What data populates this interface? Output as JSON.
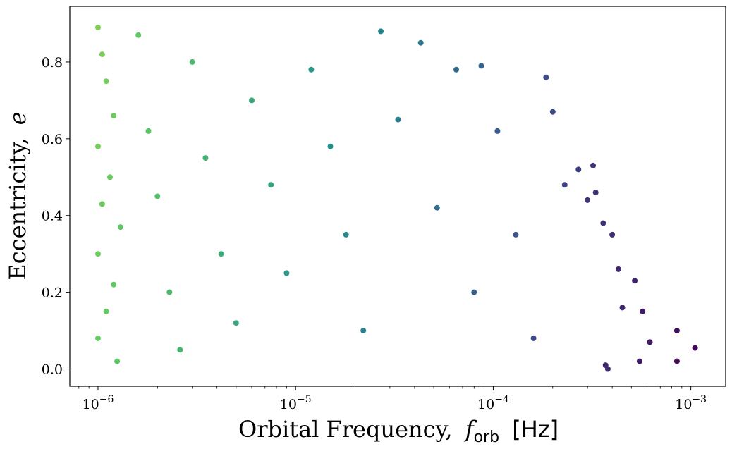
{
  "chart_data": {
    "type": "scatter",
    "title": "",
    "xlabel": "Orbital Frequency,",
    "xlabel_symbol": "f",
    "xlabel_subscript": "orb",
    "xlabel_unit": "[Hz]",
    "ylabel": "Eccentricity,",
    "ylabel_symbol": "e",
    "x_scale": "log",
    "xlim": [
      7.2e-07,
      0.0015
    ],
    "ylim": [
      -0.045,
      0.945
    ],
    "x_ticks": [
      {
        "value": 1e-06,
        "label": "10",
        "exp": "−6"
      },
      {
        "value": 1e-05,
        "label": "10",
        "exp": "−5"
      },
      {
        "value": 0.0001,
        "label": "10",
        "exp": "−4"
      },
      {
        "value": 0.001,
        "label": "10",
        "exp": "−3"
      }
    ],
    "y_ticks": [
      {
        "value": 0.0,
        "label": "0.0"
      },
      {
        "value": 0.2,
        "label": "0.2"
      },
      {
        "value": 0.4,
        "label": "0.4"
      },
      {
        "value": 0.6,
        "label": "0.6"
      },
      {
        "value": 0.8,
        "label": "0.8"
      }
    ],
    "colormap": "viridis",
    "color_note_stops": [
      "#440154",
      "#3b528b",
      "#21918c",
      "#5ec962",
      "#fde725"
    ],
    "grid": false,
    "legend": "none",
    "series": [
      {
        "points": [
          [
            1e-06,
            0.89
          ],
          [
            1.05e-06,
            0.82
          ],
          [
            1.1e-06,
            0.75
          ],
          [
            1.2e-06,
            0.66
          ],
          [
            1e-06,
            0.58
          ],
          [
            1.15e-06,
            0.5
          ],
          [
            1.05e-06,
            0.43
          ],
          [
            1.3e-06,
            0.37
          ],
          [
            1e-06,
            0.3
          ],
          [
            1.2e-06,
            0.22
          ],
          [
            1.1e-06,
            0.15
          ],
          [
            1e-06,
            0.08
          ],
          [
            1.25e-06,
            0.02
          ],
          [
            1.6e-06,
            0.87
          ],
          [
            1.8e-06,
            0.62
          ],
          [
            2e-06,
            0.45
          ],
          [
            2.3e-06,
            0.2
          ],
          [
            2.6e-06,
            0.05
          ],
          [
            3e-06,
            0.8
          ],
          [
            3.5e-06,
            0.55
          ],
          [
            4.2e-06,
            0.3
          ],
          [
            5e-06,
            0.12
          ],
          [
            6e-06,
            0.7
          ],
          [
            7.5e-06,
            0.48
          ],
          [
            9e-06,
            0.25
          ],
          [
            1.2e-05,
            0.78
          ],
          [
            1.5e-05,
            0.58
          ],
          [
            1.8e-05,
            0.35
          ],
          [
            2.2e-05,
            0.1
          ],
          [
            2.7e-05,
            0.88
          ],
          [
            3.3e-05,
            0.65
          ],
          [
            4.3e-05,
            0.85
          ],
          [
            5.2e-05,
            0.42
          ],
          [
            6.5e-05,
            0.78
          ],
          [
            8e-05,
            0.2
          ],
          [
            8.7e-05,
            0.79
          ],
          [
            0.000105,
            0.62
          ],
          [
            0.00013,
            0.35
          ],
          [
            0.00016,
            0.08
          ],
          [
            0.000185,
            0.76
          ],
          [
            0.0002,
            0.67
          ],
          [
            0.00023,
            0.48
          ],
          [
            0.00027,
            0.52
          ],
          [
            0.0003,
            0.44
          ],
          [
            0.00032,
            0.53
          ],
          [
            0.00033,
            0.46
          ],
          [
            0.00036,
            0.38
          ],
          [
            0.0004,
            0.35
          ],
          [
            0.00043,
            0.26
          ],
          [
            0.00045,
            0.16
          ],
          [
            0.00052,
            0.23
          ],
          [
            0.00057,
            0.15
          ],
          [
            0.00062,
            0.07
          ],
          [
            0.00055,
            0.02
          ],
          [
            0.00037,
            0.01
          ],
          [
            0.00085,
            0.1
          ],
          [
            0.00085,
            0.02
          ],
          [
            0.00105,
            0.055
          ],
          [
            0.00038,
            0.0
          ]
        ]
      }
    ]
  }
}
